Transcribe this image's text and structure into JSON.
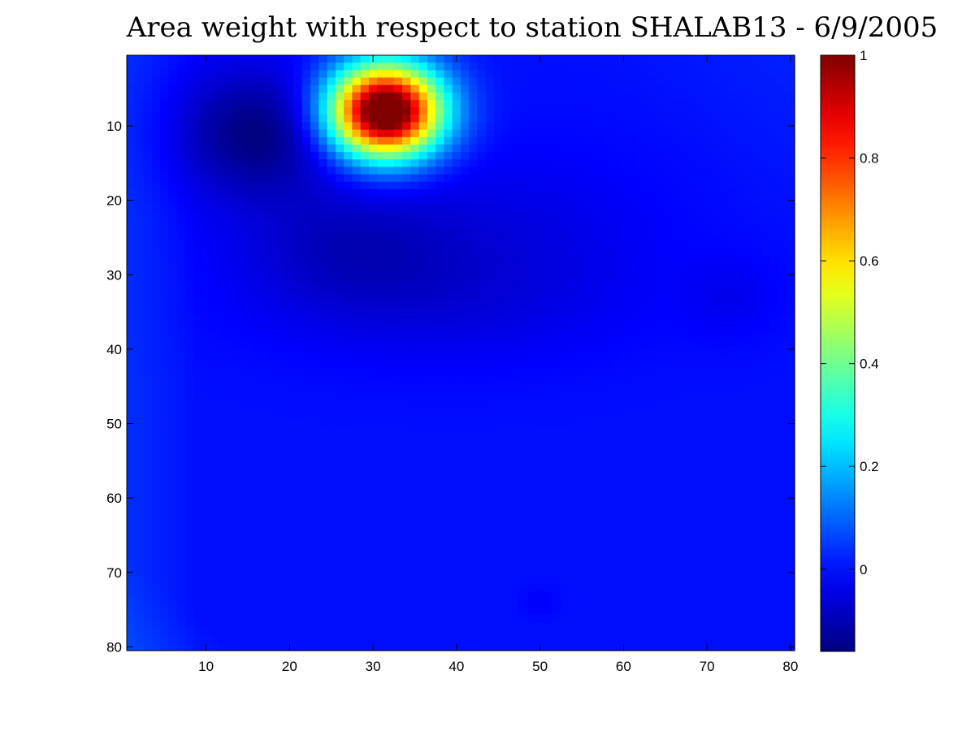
{
  "chart_data": {
    "type": "heatmap",
    "title": "Area weight with respect to station SHALAB13 - 6/9/2005",
    "xlabel": "",
    "ylabel": "",
    "grid_size": [
      80,
      80
    ],
    "xlim": [
      0.5,
      80.5
    ],
    "ylim": [
      0.5,
      80.5
    ],
    "y_reversed": true,
    "x_ticks": [
      10,
      20,
      30,
      40,
      50,
      60,
      70,
      80
    ],
    "y_ticks": [
      10,
      20,
      30,
      40,
      50,
      60,
      70,
      80
    ],
    "x_tick_labels": [
      "10",
      "20",
      "30",
      "40",
      "50",
      "60",
      "70",
      "80"
    ],
    "y_tick_labels": [
      "10",
      "20",
      "30",
      "40",
      "50",
      "60",
      "70",
      "80"
    ],
    "colormap": "jet",
    "clim": [
      -0.16,
      1.0
    ],
    "colorbar": {
      "ticks": [
        0,
        0.2,
        0.4,
        0.6,
        0.8,
        1
      ],
      "tick_labels": [
        "0",
        "0.2",
        "0.4",
        "0.6",
        "0.8",
        "1"
      ],
      "placement": "right"
    },
    "background_value": 0.0,
    "features": [
      {
        "kind": "peak",
        "x": 31.5,
        "y": 8,
        "amplitude": 1.16,
        "sx": 4.6,
        "sy": 4.3
      },
      {
        "kind": "trough",
        "x": 16,
        "y": 11,
        "amplitude": -0.16,
        "sx": 6.5,
        "sy": 6
      },
      {
        "kind": "trough",
        "x": 27,
        "y": 26,
        "amplitude": -0.08,
        "sx": 9,
        "sy": 6
      },
      {
        "kind": "trough",
        "x": 47,
        "y": 24,
        "amplitude": -0.04,
        "sx": 12,
        "sy": 8
      },
      {
        "kind": "trough",
        "x": 38,
        "y": 34,
        "amplitude": -0.04,
        "sx": 15,
        "sy": 6
      },
      {
        "kind": "trough",
        "x": 73,
        "y": 33,
        "amplitude": -0.03,
        "sx": 4,
        "sy": 4
      },
      {
        "kind": "trough",
        "x": 50,
        "y": 74,
        "amplitude": -0.02,
        "sx": 1.5,
        "sy": 1.5
      }
    ],
    "edge_gradients": [
      {
        "edge": "left",
        "value": 0.035,
        "extent": 8
      },
      {
        "edge": "bottom-left",
        "value": 0.03,
        "extent": 12
      },
      {
        "edge": "top-right",
        "value": 0.02,
        "extent": 25
      }
    ]
  }
}
